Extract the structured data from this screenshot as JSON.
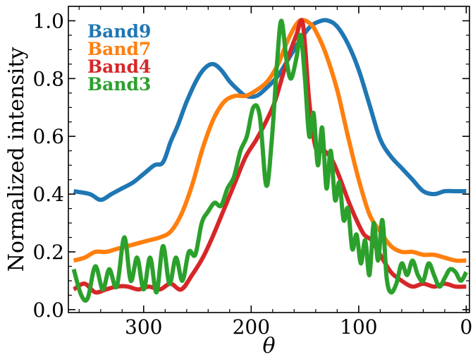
{
  "chart_data": {
    "type": "line",
    "xlabel": "θ",
    "ylabel": "Normalized intensity",
    "xlim": [
      370,
      -3
    ],
    "ylim": [
      -0.01,
      1.05
    ],
    "x_inverted": true,
    "grid": false,
    "legend_placement": "top-left",
    "xticks": [
      300,
      200,
      100,
      0
    ],
    "yticks": [
      0.0,
      0.2,
      0.4,
      0.6,
      0.8,
      1.0
    ],
    "series": [
      {
        "name": "Band9",
        "color": "#1f77b4",
        "x": [
          365,
          350,
          340,
          330,
          320,
          310,
          300,
          290,
          282,
          275,
          268,
          260,
          250,
          242,
          235,
          228,
          220,
          212,
          205,
          195,
          185,
          175,
          165,
          155,
          145,
          135,
          128,
          120,
          110,
          100,
          90,
          80,
          70,
          60,
          50,
          40,
          30,
          20,
          10,
          0
        ],
        "y": [
          0.41,
          0.4,
          0.38,
          0.4,
          0.42,
          0.44,
          0.47,
          0.5,
          0.51,
          0.58,
          0.64,
          0.72,
          0.8,
          0.84,
          0.85,
          0.83,
          0.79,
          0.76,
          0.74,
          0.74,
          0.77,
          0.81,
          0.87,
          0.93,
          0.98,
          1.0,
          1.0,
          0.98,
          0.92,
          0.83,
          0.71,
          0.59,
          0.53,
          0.49,
          0.45,
          0.41,
          0.4,
          0.41,
          0.41,
          0.41
        ]
      },
      {
        "name": "Band7",
        "color": "#ff7f0e",
        "x": [
          365,
          355,
          345,
          335,
          325,
          315,
          305,
          295,
          285,
          275,
          265,
          255,
          245,
          235,
          225,
          215,
          205,
          195,
          185,
          175,
          165,
          155,
          145,
          138,
          130,
          120,
          110,
          100,
          90,
          80,
          70,
          60,
          50,
          40,
          30,
          20,
          10,
          0
        ],
        "y": [
          0.17,
          0.18,
          0.2,
          0.2,
          0.21,
          0.22,
          0.23,
          0.24,
          0.25,
          0.27,
          0.33,
          0.43,
          0.56,
          0.66,
          0.72,
          0.74,
          0.74,
          0.76,
          0.79,
          0.85,
          0.94,
          1.0,
          0.99,
          0.95,
          0.88,
          0.76,
          0.6,
          0.45,
          0.33,
          0.27,
          0.22,
          0.2,
          0.2,
          0.19,
          0.19,
          0.18,
          0.17,
          0.17
        ]
      },
      {
        "name": "Band4",
        "color": "#d62728",
        "x": [
          365,
          355,
          345,
          335,
          325,
          315,
          305,
          295,
          285,
          275,
          265,
          255,
          245,
          235,
          225,
          215,
          205,
          195,
          185,
          178,
          170,
          165,
          158,
          152,
          146,
          140,
          132,
          125,
          118,
          110,
          102,
          95,
          88,
          80,
          70,
          60,
          50,
          40,
          30,
          20,
          10,
          0
        ],
        "y": [
          0.07,
          0.09,
          0.06,
          0.07,
          0.08,
          0.08,
          0.07,
          0.08,
          0.07,
          0.09,
          0.07,
          0.12,
          0.18,
          0.26,
          0.35,
          0.44,
          0.53,
          0.59,
          0.66,
          0.72,
          0.82,
          0.88,
          0.95,
          0.99,
          0.72,
          0.56,
          0.55,
          0.52,
          0.46,
          0.38,
          0.31,
          0.26,
          0.24,
          0.19,
          0.13,
          0.1,
          0.08,
          0.09,
          0.08,
          0.09,
          0.08,
          0.08
        ]
      },
      {
        "name": "Band3",
        "color": "#2ca02c",
        "x": [
          365,
          358,
          352,
          345,
          338,
          332,
          325,
          318,
          312,
          306,
          300,
          294,
          288,
          282,
          276,
          270,
          264,
          258,
          252,
          246,
          240,
          234,
          228,
          222,
          216,
          210,
          204,
          198,
          192,
          186,
          181,
          176,
          172,
          167,
          163,
          158,
          154,
          150,
          146,
          142,
          138,
          134,
          130,
          126,
          122,
          118,
          114,
          110,
          106,
          102,
          98,
          94,
          90,
          86,
          82,
          78,
          74,
          70,
          65,
          60,
          55,
          50,
          45,
          40,
          35,
          30,
          25,
          20,
          15,
          10,
          5,
          0
        ],
        "y": [
          0.14,
          0.05,
          0.04,
          0.15,
          0.07,
          0.14,
          0.08,
          0.25,
          0.1,
          0.18,
          0.07,
          0.18,
          0.06,
          0.22,
          0.09,
          0.18,
          0.1,
          0.2,
          0.19,
          0.3,
          0.34,
          0.37,
          0.36,
          0.42,
          0.46,
          0.55,
          0.6,
          0.7,
          0.67,
          0.43,
          0.58,
          0.85,
          1.0,
          0.86,
          0.8,
          0.87,
          0.95,
          0.8,
          0.6,
          0.68,
          0.5,
          0.63,
          0.42,
          0.55,
          0.38,
          0.44,
          0.31,
          0.35,
          0.21,
          0.26,
          0.16,
          0.24,
          0.12,
          0.3,
          0.17,
          0.31,
          0.11,
          0.06,
          0.09,
          0.16,
          0.12,
          0.17,
          0.12,
          0.1,
          0.16,
          0.12,
          0.08,
          0.11,
          0.14,
          0.13,
          0.1,
          0.13
        ]
      }
    ]
  }
}
